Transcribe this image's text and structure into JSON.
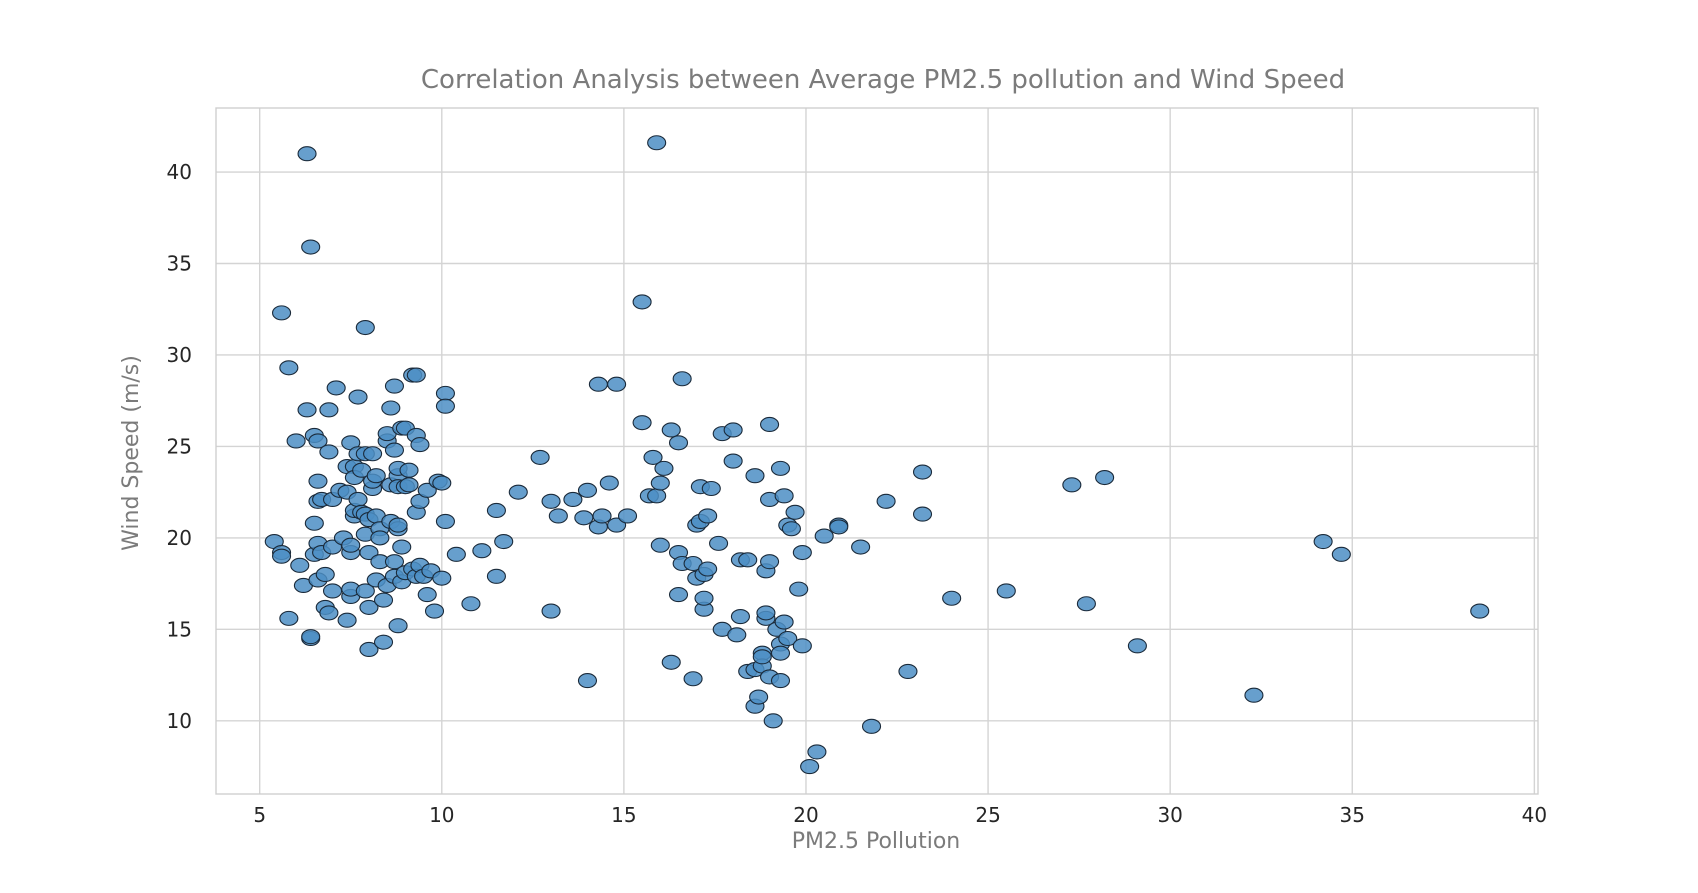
{
  "chart_data": {
    "type": "scatter",
    "title": "Correlation Analysis between Average PM2.5 pollution and Wind Speed",
    "xlabel": "PM2.5 Pollution",
    "ylabel": "Wind Speed (m/s)",
    "xlim": [
      3.8,
      40.1
    ],
    "ylim": [
      6.0,
      43.5
    ],
    "xticks": [
      "5",
      "10",
      "15",
      "20",
      "25",
      "30",
      "35",
      "40"
    ],
    "yticks": [
      "10",
      "15",
      "20",
      "25",
      "30",
      "35",
      "40"
    ],
    "grid": true,
    "legend": "none",
    "marker_color": "#4C8EC4",
    "marker_edge": "#1a2a3a",
    "points": [
      [
        5.4,
        19.8
      ],
      [
        5.6,
        19.2
      ],
      [
        5.6,
        19.0
      ],
      [
        5.6,
        32.3
      ],
      [
        5.8,
        29.3
      ],
      [
        5.8,
        15.6
      ],
      [
        6.0,
        25.3
      ],
      [
        6.1,
        18.5
      ],
      [
        6.2,
        17.4
      ],
      [
        6.3,
        41.0
      ],
      [
        6.3,
        27.0
      ],
      [
        6.4,
        14.5
      ],
      [
        6.4,
        14.6
      ],
      [
        6.4,
        35.9
      ],
      [
        6.5,
        25.6
      ],
      [
        6.5,
        19.1
      ],
      [
        6.5,
        20.8
      ],
      [
        6.6,
        25.3
      ],
      [
        6.6,
        23.1
      ],
      [
        6.6,
        22.0
      ],
      [
        6.7,
        22.1
      ],
      [
        6.6,
        17.7
      ],
      [
        6.6,
        19.7
      ],
      [
        6.7,
        19.2
      ],
      [
        6.8,
        18.0
      ],
      [
        6.8,
        16.2
      ],
      [
        6.9,
        15.9
      ],
      [
        6.9,
        27.0
      ],
      [
        6.9,
        24.7
      ],
      [
        7.0,
        22.1
      ],
      [
        7.0,
        19.5
      ],
      [
        7.0,
        17.1
      ],
      [
        7.1,
        28.2
      ],
      [
        7.2,
        22.6
      ],
      [
        7.3,
        20.0
      ],
      [
        7.4,
        23.9
      ],
      [
        7.4,
        15.5
      ],
      [
        7.4,
        22.5
      ],
      [
        7.5,
        25.2
      ],
      [
        7.5,
        19.2
      ],
      [
        7.5,
        19.6
      ],
      [
        7.5,
        16.8
      ],
      [
        7.5,
        17.2
      ],
      [
        7.6,
        21.2
      ],
      [
        7.6,
        21.5
      ],
      [
        7.6,
        23.9
      ],
      [
        7.6,
        23.3
      ],
      [
        7.7,
        22.1
      ],
      [
        7.7,
        24.6
      ],
      [
        7.7,
        27.7
      ],
      [
        7.8,
        23.7
      ],
      [
        7.8,
        21.4
      ],
      [
        7.9,
        21.3
      ],
      [
        7.9,
        24.6
      ],
      [
        7.9,
        20.2
      ],
      [
        7.9,
        17.1
      ],
      [
        7.9,
        31.5
      ],
      [
        8.0,
        19.2
      ],
      [
        8.0,
        16.2
      ],
      [
        8.0,
        21.0
      ],
      [
        8.0,
        13.9
      ],
      [
        8.1,
        22.7
      ],
      [
        8.1,
        23.1
      ],
      [
        8.1,
        24.6
      ],
      [
        8.2,
        17.7
      ],
      [
        8.2,
        21.2
      ],
      [
        8.2,
        23.4
      ],
      [
        8.3,
        20.5
      ],
      [
        8.3,
        20.0
      ],
      [
        8.3,
        18.7
      ],
      [
        8.4,
        16.6
      ],
      [
        8.4,
        14.3
      ],
      [
        8.5,
        17.4
      ],
      [
        8.5,
        25.3
      ],
      [
        8.5,
        25.7
      ],
      [
        8.6,
        27.1
      ],
      [
        8.6,
        20.9
      ],
      [
        8.6,
        22.9
      ],
      [
        8.7,
        24.8
      ],
      [
        8.7,
        28.3
      ],
      [
        8.7,
        17.9
      ],
      [
        8.7,
        18.7
      ],
      [
        8.8,
        15.2
      ],
      [
        8.8,
        20.5
      ],
      [
        8.8,
        23.4
      ],
      [
        8.8,
        22.8
      ],
      [
        8.8,
        23.8
      ],
      [
        8.8,
        20.7
      ],
      [
        8.9,
        26.0
      ],
      [
        8.9,
        19.5
      ],
      [
        8.9,
        17.6
      ],
      [
        9.0,
        26.0
      ],
      [
        9.0,
        18.1
      ],
      [
        9.0,
        22.8
      ],
      [
        9.1,
        23.7
      ],
      [
        9.1,
        22.9
      ],
      [
        9.2,
        18.3
      ],
      [
        9.2,
        28.9
      ],
      [
        9.3,
        28.9
      ],
      [
        9.3,
        25.6
      ],
      [
        9.3,
        21.4
      ],
      [
        9.3,
        17.9
      ],
      [
        9.4,
        25.1
      ],
      [
        9.4,
        22.0
      ],
      [
        9.4,
        18.5
      ],
      [
        9.5,
        17.9
      ],
      [
        9.6,
        22.6
      ],
      [
        9.6,
        16.9
      ],
      [
        9.7,
        18.2
      ],
      [
        9.8,
        16.0
      ],
      [
        9.9,
        23.1
      ],
      [
        10.0,
        23.0
      ],
      [
        10.0,
        17.8
      ],
      [
        10.1,
        27.9
      ],
      [
        10.1,
        27.2
      ],
      [
        10.1,
        20.9
      ],
      [
        10.4,
        19.1
      ],
      [
        10.8,
        16.4
      ],
      [
        11.1,
        19.3
      ],
      [
        11.5,
        17.9
      ],
      [
        11.5,
        21.5
      ],
      [
        11.7,
        19.8
      ],
      [
        12.1,
        22.5
      ],
      [
        12.7,
        24.4
      ],
      [
        13.0,
        16.0
      ],
      [
        13.0,
        22.0
      ],
      [
        13.2,
        21.2
      ],
      [
        13.6,
        22.1
      ],
      [
        13.9,
        21.1
      ],
      [
        14.0,
        22.6
      ],
      [
        14.0,
        12.2
      ],
      [
        14.3,
        28.4
      ],
      [
        14.3,
        20.6
      ],
      [
        14.4,
        21.2
      ],
      [
        14.6,
        23.0
      ],
      [
        14.8,
        28.4
      ],
      [
        14.8,
        20.7
      ],
      [
        15.1,
        21.2
      ],
      [
        15.5,
        32.9
      ],
      [
        15.5,
        26.3
      ],
      [
        15.7,
        22.3
      ],
      [
        15.8,
        24.4
      ],
      [
        15.9,
        22.3
      ],
      [
        15.9,
        41.6
      ],
      [
        16.0,
        23.0
      ],
      [
        16.0,
        19.6
      ],
      [
        16.1,
        23.8
      ],
      [
        16.3,
        13.2
      ],
      [
        16.3,
        25.9
      ],
      [
        16.5,
        25.2
      ],
      [
        16.5,
        19.2
      ],
      [
        16.5,
        16.9
      ],
      [
        16.6,
        28.7
      ],
      [
        16.6,
        18.6
      ],
      [
        16.9,
        12.3
      ],
      [
        16.9,
        18.6
      ],
      [
        17.0,
        20.7
      ],
      [
        17.0,
        17.8
      ],
      [
        17.1,
        22.8
      ],
      [
        17.1,
        20.9
      ],
      [
        17.2,
        18.0
      ],
      [
        17.2,
        16.1
      ],
      [
        17.2,
        16.7
      ],
      [
        17.3,
        18.3
      ],
      [
        17.3,
        21.2
      ],
      [
        17.4,
        22.7
      ],
      [
        17.6,
        19.7
      ],
      [
        17.7,
        15.0
      ],
      [
        17.7,
        25.7
      ],
      [
        18.0,
        25.9
      ],
      [
        18.0,
        24.2
      ],
      [
        18.1,
        14.7
      ],
      [
        18.2,
        18.8
      ],
      [
        18.2,
        15.7
      ],
      [
        18.4,
        12.7
      ],
      [
        18.4,
        18.8
      ],
      [
        18.6,
        23.4
      ],
      [
        18.6,
        12.8
      ],
      [
        18.6,
        10.8
      ],
      [
        18.7,
        11.3
      ],
      [
        18.8,
        13.7
      ],
      [
        18.8,
        13.0
      ],
      [
        18.8,
        13.5
      ],
      [
        18.9,
        18.2
      ],
      [
        18.9,
        15.6
      ],
      [
        18.9,
        15.9
      ],
      [
        19.0,
        26.2
      ],
      [
        19.0,
        22.1
      ],
      [
        19.0,
        18.7
      ],
      [
        19.0,
        12.4
      ],
      [
        19.1,
        10.0
      ],
      [
        19.2,
        15.0
      ],
      [
        19.3,
        14.2
      ],
      [
        19.3,
        23.8
      ],
      [
        19.3,
        13.7
      ],
      [
        19.3,
        12.2
      ],
      [
        19.4,
        15.4
      ],
      [
        19.4,
        22.3
      ],
      [
        19.5,
        14.5
      ],
      [
        19.5,
        20.7
      ],
      [
        19.6,
        20.5
      ],
      [
        19.7,
        21.4
      ],
      [
        19.8,
        17.2
      ],
      [
        19.9,
        14.1
      ],
      [
        19.9,
        19.2
      ],
      [
        20.1,
        7.5
      ],
      [
        20.3,
        8.3
      ],
      [
        20.5,
        20.1
      ],
      [
        20.9,
        20.7
      ],
      [
        20.9,
        20.6
      ],
      [
        21.5,
        19.5
      ],
      [
        21.8,
        9.7
      ],
      [
        22.2,
        22.0
      ],
      [
        22.8,
        12.7
      ],
      [
        23.2,
        23.6
      ],
      [
        23.2,
        21.3
      ],
      [
        24.0,
        16.7
      ],
      [
        25.5,
        17.1
      ],
      [
        27.3,
        22.9
      ],
      [
        27.7,
        16.4
      ],
      [
        28.2,
        23.3
      ],
      [
        29.1,
        14.1
      ],
      [
        32.3,
        11.4
      ],
      [
        34.2,
        19.8
      ],
      [
        34.7,
        19.1
      ],
      [
        38.5,
        16.0
      ]
    ]
  }
}
